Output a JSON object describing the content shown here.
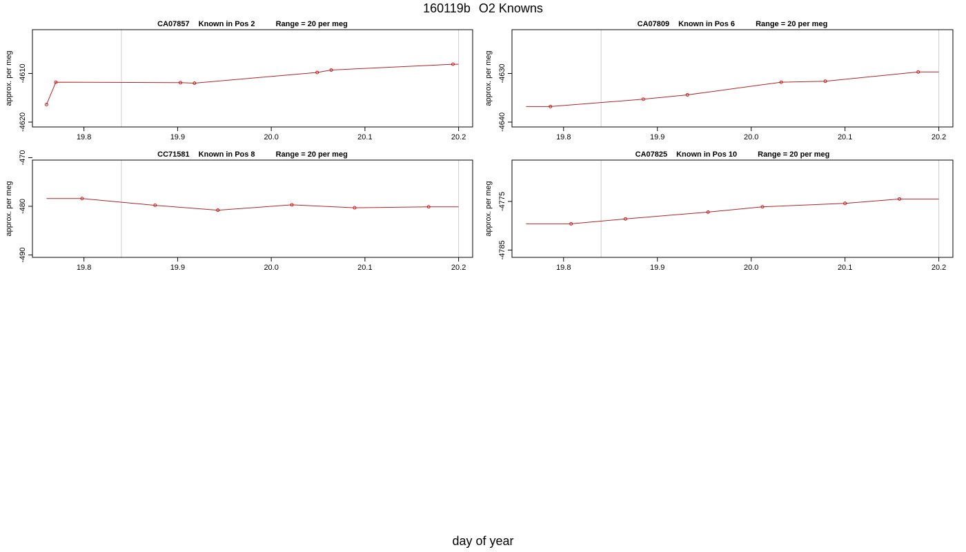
{
  "figure": {
    "title_left": "160119b",
    "title_right": "O2 Knowns",
    "xlabel": "day of year"
  },
  "chart_data": [
    {
      "type": "line",
      "title": [
        "CA07857",
        "Known in Pos 2",
        "Range = 20 per meg"
      ],
      "ylabel": "approx. per meg",
      "xlim": [
        19.745,
        20.215
      ],
      "ylim": [
        -4621,
        -4601
      ],
      "xticks": [
        19.8,
        19.9,
        20.0,
        20.1,
        20.2
      ],
      "xtick_labels": [
        "19.8",
        "19.9",
        "20.0",
        "20.1",
        "20.2"
      ],
      "yticks": [
        -4620,
        -4610
      ],
      "ytick_labels": [
        "-4620",
        "-4610"
      ],
      "vlines": [
        19.84,
        20.2
      ],
      "series": [
        {
          "x": [
            19.76,
            19.77,
            19.903,
            19.918,
            20.049,
            20.064,
            20.194
          ],
          "y": [
            -4616.4,
            -4611.8,
            -4611.9,
            -4612.0,
            -4609.8,
            -4609.3,
            -4608.1
          ]
        }
      ],
      "extensions": {
        "end": [
          20.2,
          -4608.1
        ]
      }
    },
    {
      "type": "line",
      "title": [
        "CA07809",
        "Known in Pos 6",
        "Range = 20 per meg"
      ],
      "ylabel": "approx. per meg",
      "xlim": [
        19.745,
        20.215
      ],
      "ylim": [
        -4641,
        -4621
      ],
      "xticks": [
        19.8,
        19.9,
        20.0,
        20.1,
        20.2
      ],
      "xtick_labels": [
        "19.8",
        "19.9",
        "20.0",
        "20.1",
        "20.2"
      ],
      "yticks": [
        -4640,
        -4630
      ],
      "ytick_labels": [
        "-4640",
        "-4630"
      ],
      "vlines": [
        19.84,
        20.2
      ],
      "series": [
        {
          "x": [
            19.786,
            19.885,
            19.932,
            20.032,
            20.079,
            20.178
          ],
          "y": [
            -4636.8,
            -4635.3,
            -4634.4,
            -4631.8,
            -4631.6,
            -4629.7
          ]
        }
      ],
      "extensions": {
        "start": [
          19.76,
          -4636.8
        ],
        "end": [
          20.2,
          -4629.7
        ]
      }
    },
    {
      "type": "line",
      "title": [
        "CC71581",
        "Known in Pos 8",
        "Range = 20 per meg"
      ],
      "ylabel": "approx. per meg",
      "xlim": [
        19.745,
        20.215
      ],
      "ylim": [
        -490.5,
        -470.5
      ],
      "xticks": [
        19.8,
        19.9,
        20.0,
        20.1,
        20.2
      ],
      "xtick_labels": [
        "19.8",
        "19.9",
        "20.0",
        "20.1",
        "20.2"
      ],
      "yticks": [
        -490,
        -480,
        -470
      ],
      "ytick_labels": [
        "-490",
        "-480",
        "-470"
      ],
      "vlines": [
        19.84,
        20.2
      ],
      "series": [
        {
          "x": [
            19.798,
            19.876,
            19.943,
            20.022,
            20.089,
            20.168
          ],
          "y": [
            -478.4,
            -479.8,
            -480.8,
            -479.7,
            -480.3,
            -480.1
          ]
        }
      ],
      "extensions": {
        "start": [
          19.76,
          -478.4
        ],
        "end": [
          20.2,
          -480.1
        ]
      }
    },
    {
      "type": "line",
      "title": [
        "CA07825",
        "Known in Pos 10",
        "Range = 20 per meg"
      ],
      "ylabel": "approx. per meg",
      "xlim": [
        19.745,
        20.215
      ],
      "ylim": [
        -4786.5,
        -4766.5
      ],
      "xticks": [
        19.8,
        19.9,
        20.0,
        20.1,
        20.2
      ],
      "xtick_labels": [
        "19.8",
        "19.9",
        "20.0",
        "20.1",
        "20.2"
      ],
      "yticks": [
        -4785,
        -4775
      ],
      "ytick_labels": [
        "-4785",
        "-4775"
      ],
      "vlines": [
        19.84,
        20.2
      ],
      "series": [
        {
          "x": [
            19.808,
            19.866,
            19.954,
            20.012,
            20.1,
            20.158
          ],
          "y": [
            -4779.6,
            -4778.6,
            -4777.2,
            -4776.1,
            -4775.4,
            -4774.5
          ]
        }
      ],
      "extensions": {
        "start": [
          19.76,
          -4779.6
        ],
        "end": [
          20.2,
          -4774.5
        ]
      }
    }
  ],
  "colors": {
    "line": "#b22222",
    "marker": "#cc0000",
    "vline": "#cccccc",
    "axis": "#000000"
  }
}
